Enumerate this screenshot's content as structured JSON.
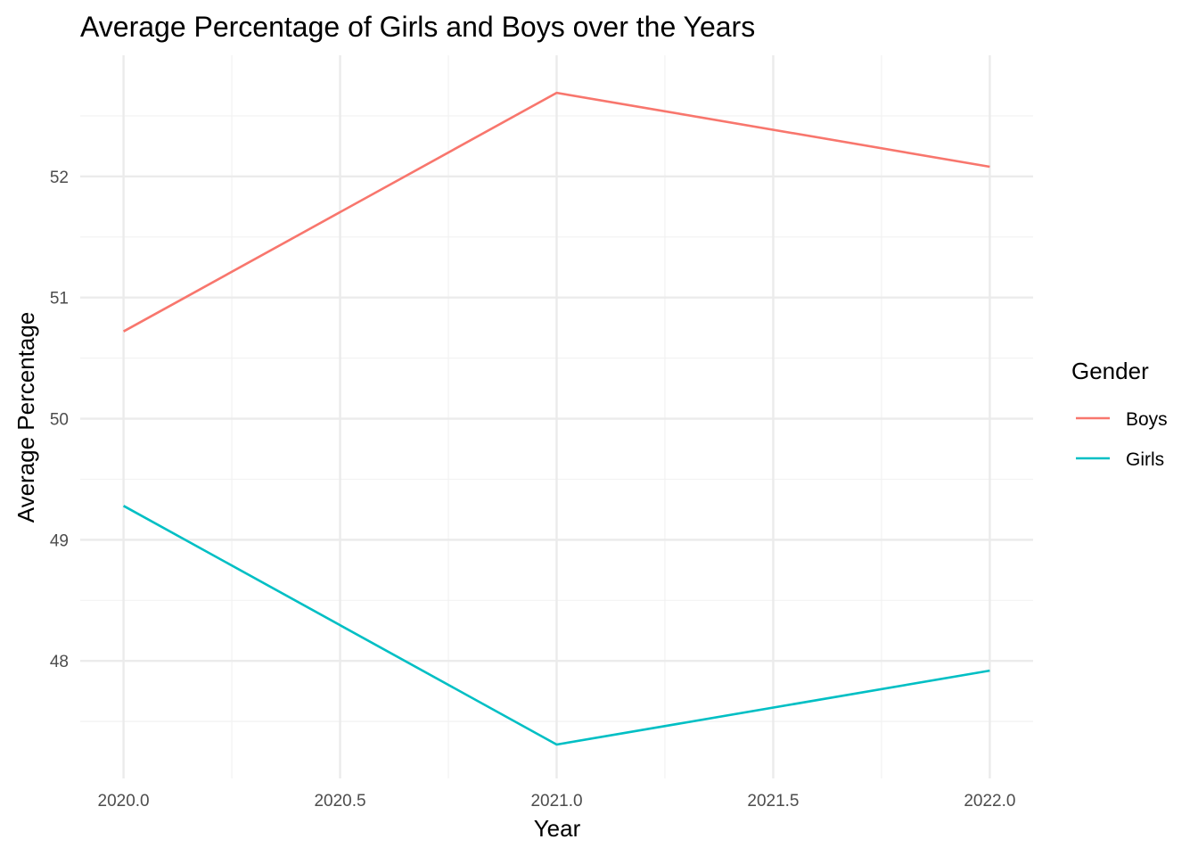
{
  "chart_data": {
    "type": "line",
    "title": "Average Percentage of Girls and Boys over the Years",
    "xlabel": "Year",
    "ylabel": "Average Percentage",
    "x": [
      2020,
      2021,
      2022
    ],
    "xlim": [
      1999.9,
      2022.1
    ],
    "ylim": [
      47.03,
      53.0
    ],
    "x_ticks": [
      2020.0,
      2020.5,
      2021.0,
      2021.5,
      2022.0
    ],
    "x_tick_labels": [
      "2020.0",
      "2020.5",
      "2021.0",
      "2021.5",
      "2022.0"
    ],
    "y_ticks": [
      48,
      49,
      50,
      51,
      52
    ],
    "y_tick_labels": [
      "48",
      "49",
      "50",
      "51",
      "52"
    ],
    "grid": true,
    "legend": {
      "title": "Gender",
      "placement": "right"
    },
    "series": [
      {
        "name": "Boys",
        "color": "#F8766D",
        "values": [
          50.72,
          52.69,
          52.08
        ]
      },
      {
        "name": "Girls",
        "color": "#00BFC4",
        "values": [
          49.28,
          47.31,
          47.92
        ]
      }
    ]
  }
}
